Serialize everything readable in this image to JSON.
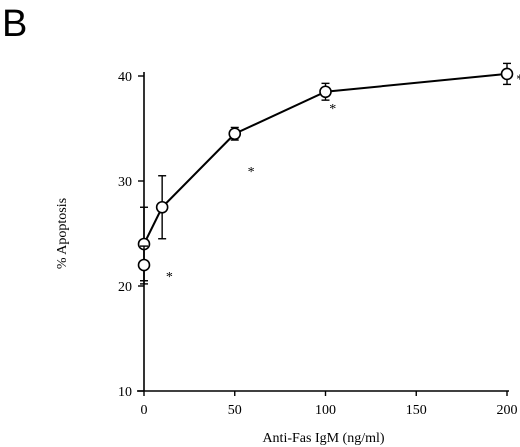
{
  "panel_letter": "B",
  "chart_data": {
    "type": "line",
    "xlabel": "Anti-Fas IgM (ng/ml)",
    "ylabel": "% Apoptosis",
    "xlim": [
      0,
      200
    ],
    "ylim": [
      10,
      40
    ],
    "xticks": [
      0,
      50,
      100,
      150,
      200
    ],
    "yticks": [
      10,
      20,
      30,
      40
    ],
    "series": [
      {
        "x": [
          0,
          10,
          50,
          100,
          200
        ],
        "y": [
          24,
          27.5,
          34.5,
          38.5,
          40.2
        ],
        "err": [
          3.5,
          3,
          0.6,
          0.8,
          1
        ],
        "marker": "open-circle"
      }
    ],
    "extra_points": [
      {
        "x": 0,
        "y": 22,
        "err": 1.8
      }
    ],
    "annotations": [
      {
        "text": "*",
        "x": 14,
        "y": 20.5
      },
      {
        "text": "*",
        "x": 59,
        "y": 30.5
      },
      {
        "text": "*",
        "x": 104,
        "y": 36.5
      },
      {
        "text": "*",
        "x": 207,
        "y": 39.3
      }
    ],
    "grid": false,
    "legend": "none"
  }
}
